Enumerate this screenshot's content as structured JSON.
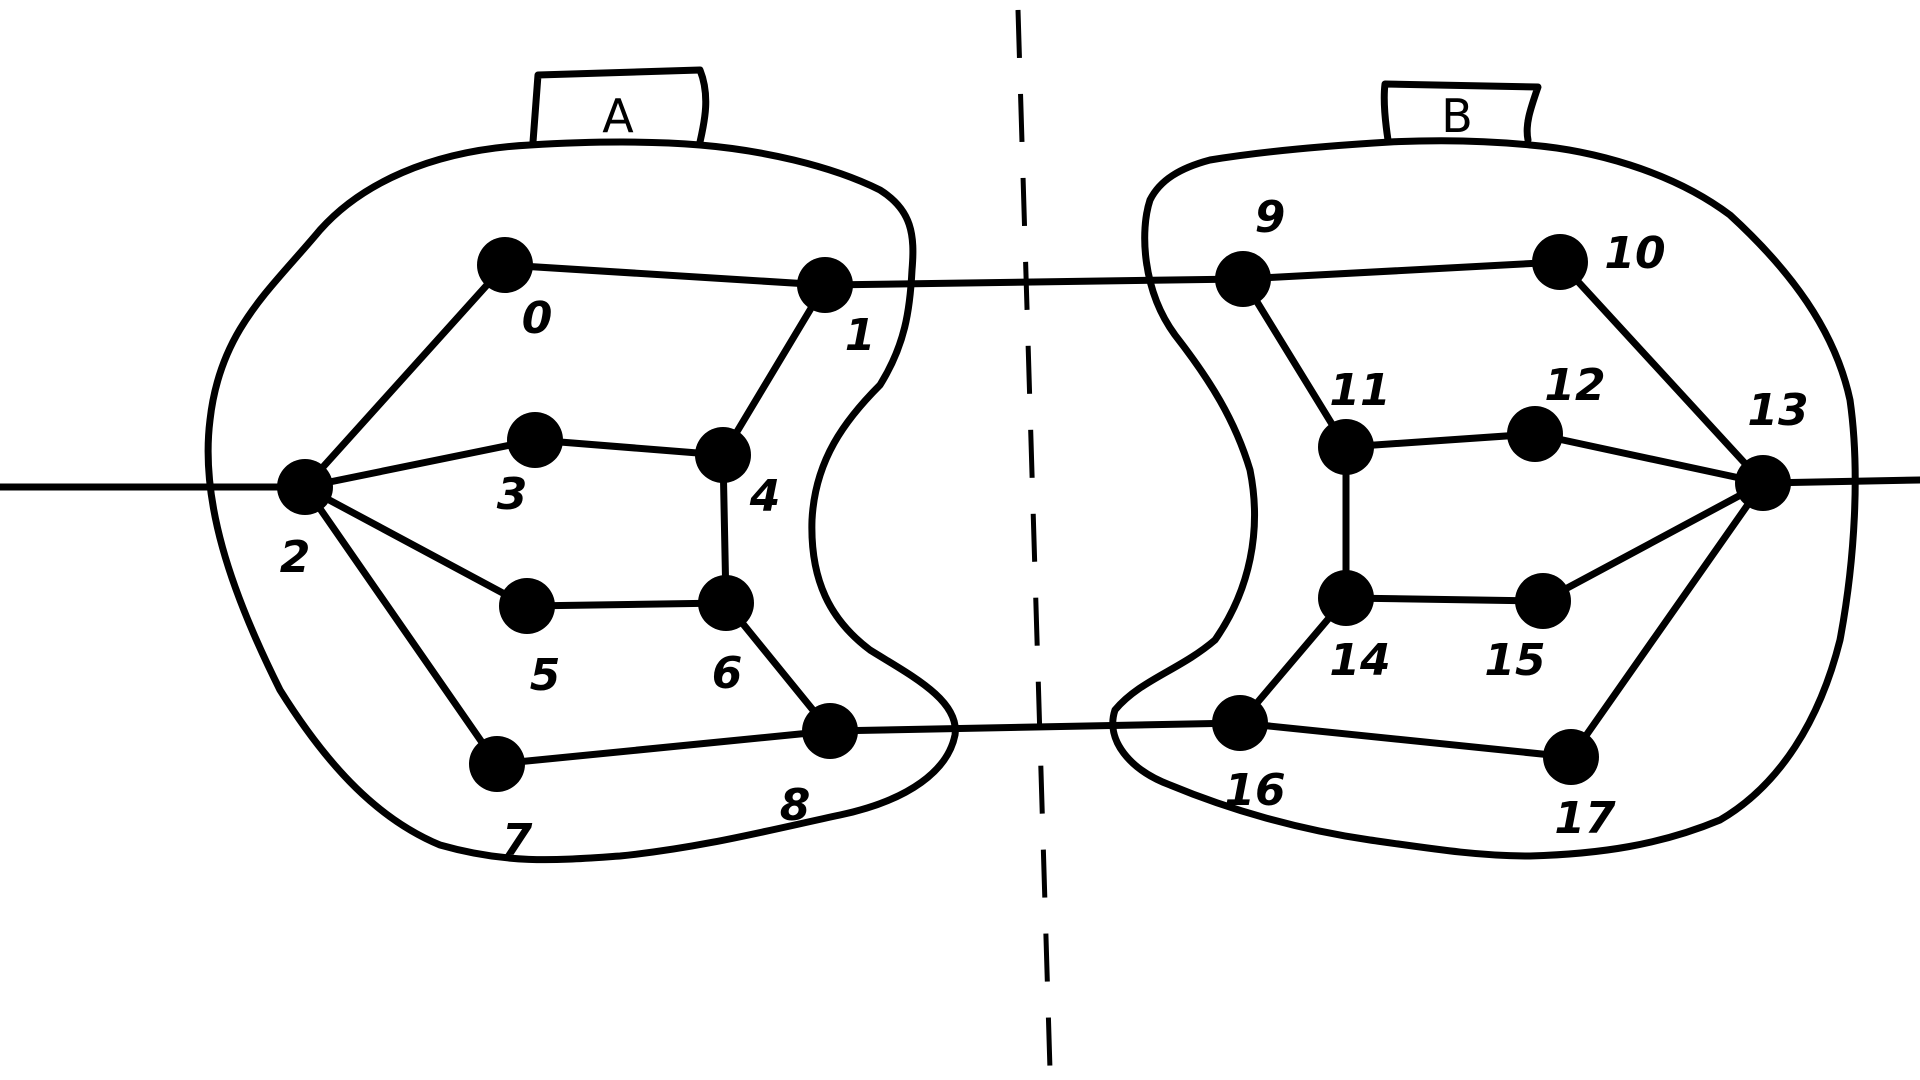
{
  "partitions": [
    {
      "id": "A",
      "label": "A"
    },
    {
      "id": "B",
      "label": "B"
    }
  ],
  "nodes": [
    {
      "id": 0,
      "label": "0"
    },
    {
      "id": 1,
      "label": "1"
    },
    {
      "id": 2,
      "label": "2"
    },
    {
      "id": 3,
      "label": "3"
    },
    {
      "id": 4,
      "label": "4"
    },
    {
      "id": 5,
      "label": "5"
    },
    {
      "id": 6,
      "label": "6"
    },
    {
      "id": 7,
      "label": "7"
    },
    {
      "id": 8,
      "label": "8"
    },
    {
      "id": 9,
      "label": "9"
    },
    {
      "id": 10,
      "label": "10"
    },
    {
      "id": 11,
      "label": "11"
    },
    {
      "id": 12,
      "label": "12"
    },
    {
      "id": 13,
      "label": "13"
    },
    {
      "id": 14,
      "label": "14"
    },
    {
      "id": 15,
      "label": "15"
    },
    {
      "id": 16,
      "label": "16"
    },
    {
      "id": 17,
      "label": "17"
    }
  ],
  "edges": [
    [
      0,
      1
    ],
    [
      0,
      2
    ],
    [
      1,
      4
    ],
    [
      2,
      3
    ],
    [
      2,
      5
    ],
    [
      2,
      7
    ],
    [
      3,
      4
    ],
    [
      4,
      6
    ],
    [
      5,
      6
    ],
    [
      6,
      8
    ],
    [
      7,
      8
    ],
    [
      9,
      10
    ],
    [
      9,
      11
    ],
    [
      10,
      13
    ],
    [
      11,
      12
    ],
    [
      11,
      14
    ],
    [
      12,
      13
    ],
    [
      13,
      15
    ],
    [
      13,
      17
    ],
    [
      14,
      15
    ],
    [
      14,
      16
    ],
    [
      16,
      17
    ],
    [
      1,
      9
    ],
    [
      8,
      16
    ]
  ],
  "external_edges": [
    2,
    13
  ],
  "colors": {
    "ink": "#000000",
    "background": "#ffffff"
  }
}
